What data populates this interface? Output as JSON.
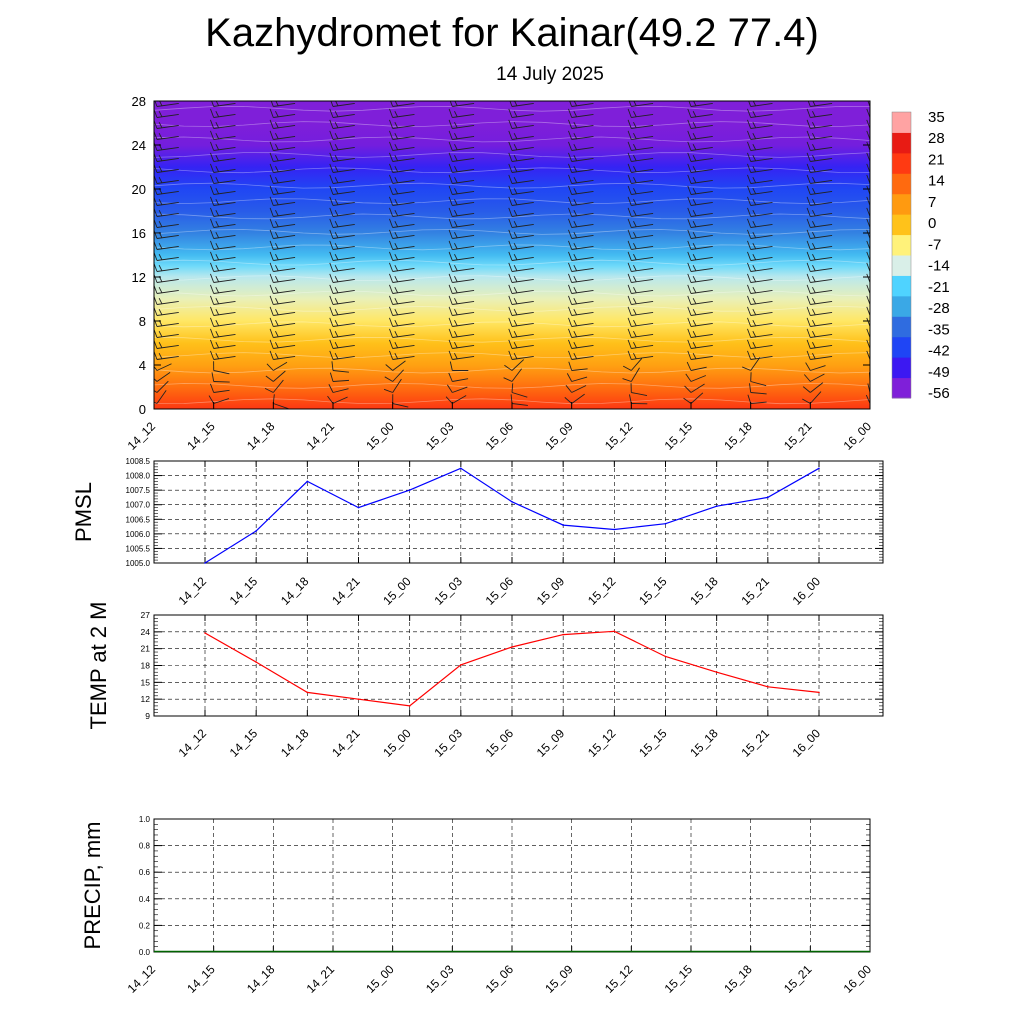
{
  "title": "Kazhydromet for Kainar(49.2 77.4)",
  "subtitle": "14 July 2025",
  "chart_data": [
    {
      "type": "heatmap",
      "name": "cross-section temperature with wind barbs",
      "x_ticks": [
        "14_12",
        "14_15",
        "14_18",
        "14_21",
        "15_00",
        "15_03",
        "15_06",
        "15_09",
        "15_12",
        "15_15",
        "15_18",
        "15_21",
        "16_00"
      ],
      "y_ticks": [
        "0",
        "4",
        "8",
        "12",
        "16",
        "20",
        "24",
        "28"
      ],
      "ylim": [
        0,
        28
      ],
      "colorbar": {
        "labels": [
          "35",
          "28",
          "21",
          "14",
          "7",
          "0",
          "-7",
          "-14",
          "-21",
          "-28",
          "-35",
          "-42",
          "-49",
          "-56"
        ],
        "range": [
          -63,
          42
        ],
        "colors": [
          "#7f1fd9",
          "#3c18f2",
          "#1f45f5",
          "#2f6ce0",
          "#3aa8e6",
          "#4fd3ff",
          "#d9efe8",
          "#fff27a",
          "#ffc21a",
          "#ff9a10",
          "#ff6a0f",
          "#ff3a12",
          "#e81b14",
          "#ffa3a3"
        ]
      },
      "temperature_profile": [
        {
          "z": 0,
          "t": 24
        },
        {
          "z": 2,
          "t": 15
        },
        {
          "z": 4,
          "t": 7
        },
        {
          "z": 6,
          "t": 1
        },
        {
          "z": 8,
          "t": -5
        },
        {
          "z": 10,
          "t": -11
        },
        {
          "z": 12,
          "t": -16
        },
        {
          "z": 13,
          "t": -20
        },
        {
          "z": 14,
          "t": -26
        },
        {
          "z": 16,
          "t": -34
        },
        {
          "z": 18,
          "t": -40
        },
        {
          "z": 20,
          "t": -44
        },
        {
          "z": 22,
          "t": -50
        },
        {
          "z": 24,
          "t": -58
        },
        {
          "z": 26,
          "t": -60
        },
        {
          "z": 28,
          "t": -62
        }
      ]
    },
    {
      "type": "line",
      "ylabel": "PMSL",
      "categories": [
        "14_12",
        "14_15",
        "14_18",
        "14_21",
        "15_00",
        "15_03",
        "15_06",
        "15_09",
        "15_12",
        "15_15",
        "15_18",
        "15_21",
        "16_00"
      ],
      "values": [
        1005.0,
        1006.1,
        1007.8,
        1006.9,
        1007.5,
        1008.25,
        1007.1,
        1006.3,
        1006.15,
        1006.35,
        1006.95,
        1007.25,
        1008.25
      ],
      "ylim": [
        1005.0,
        1008.5
      ],
      "y_ticks": [
        "1005.0",
        "1005.5",
        "1006.0",
        "1006.5",
        "1007.0",
        "1007.5",
        "1008.0",
        "1008.5"
      ],
      "color": "#0000ff",
      "grid": true
    },
    {
      "type": "line",
      "ylabel": "TEMP at 2 M",
      "categories": [
        "14_12",
        "14_15",
        "14_18",
        "14_21",
        "15_00",
        "15_03",
        "15_06",
        "15_09",
        "15_12",
        "15_15",
        "15_18",
        "15_21",
        "16_00"
      ],
      "values": [
        23.8,
        18.6,
        13.2,
        12.0,
        10.8,
        18.1,
        21.3,
        23.5,
        24.1,
        19.6,
        16.8,
        14.2,
        13.2
      ],
      "ylim": [
        9,
        27
      ],
      "y_ticks": [
        "9",
        "12",
        "15",
        "18",
        "21",
        "24",
        "27"
      ],
      "color": "#ff0000",
      "grid": true
    },
    {
      "type": "line",
      "ylabel": "PRECIP, mm",
      "categories": [
        "14_12",
        "14_15",
        "14_18",
        "14_21",
        "15_00",
        "15_03",
        "15_06",
        "15_09",
        "15_12",
        "15_15",
        "15_18",
        "15_21",
        "16_00"
      ],
      "values": [
        0,
        0,
        0,
        0,
        0,
        0,
        0,
        0,
        0,
        0,
        0,
        0,
        0
      ],
      "ylim": [
        0.0,
        1.0
      ],
      "y_ticks": [
        "0.0",
        "0.2",
        "0.4",
        "0.6",
        "0.8",
        "1.0"
      ],
      "color": "#006400",
      "grid": true
    }
  ]
}
